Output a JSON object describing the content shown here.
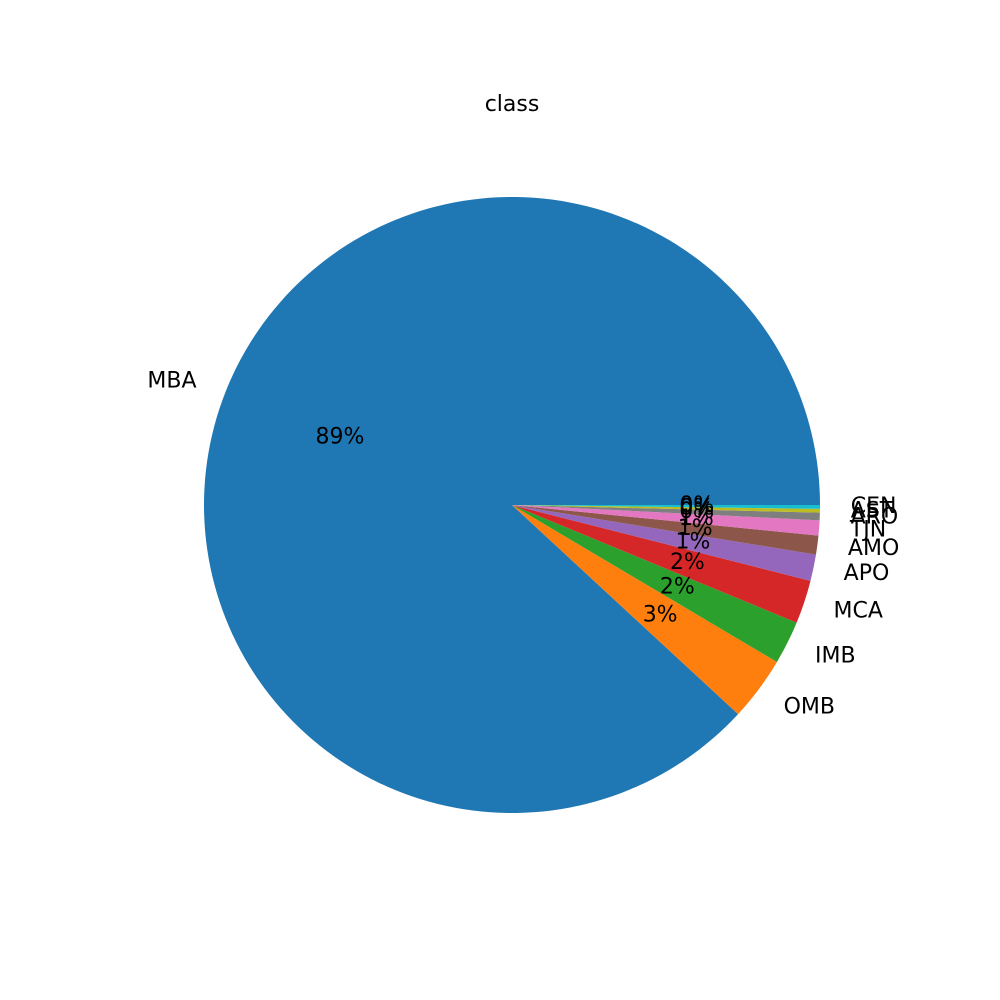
{
  "chart_data": {
    "type": "pie",
    "title": "class",
    "categories": [
      "MBA",
      "OMB",
      "IMB",
      "MCA",
      "APO",
      "AMO",
      "TJN",
      "ARO",
      "AST",
      "CEN"
    ],
    "values": [
      89.0,
      3.4,
      2.3,
      2.3,
      1.4,
      1.0,
      0.8,
      0.4,
      0.2,
      0.2
    ],
    "percent_labels": [
      "89%",
      "3%",
      "2%",
      "2%",
      "1%",
      "1%",
      "1%",
      "0%",
      "0%",
      "0%"
    ],
    "colors": [
      "#1f77b4",
      "#ff7f0e",
      "#2ca02c",
      "#d62728",
      "#9467bd",
      "#8c564b",
      "#e377c2",
      "#7f7f7f",
      "#bcbd22",
      "#17becf"
    ],
    "start_angle": "0°, counter-clockwise",
    "legend": "none",
    "grid": false
  }
}
